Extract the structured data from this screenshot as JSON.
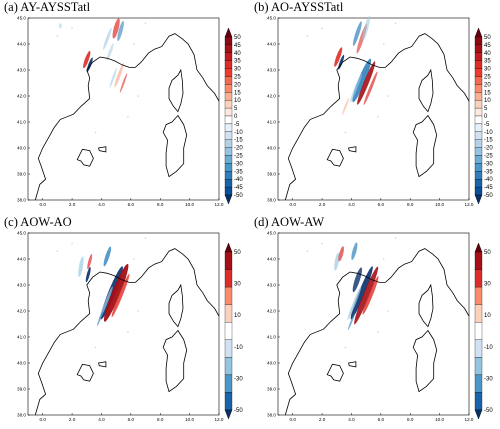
{
  "figure": {
    "panels": [
      {
        "title": "(a) AY-AYSSTatl",
        "colorbar_labels": [
          "50",
          "45",
          "40",
          "35",
          "30",
          "25",
          "20",
          "15",
          "10",
          "5",
          "0",
          "-5",
          "-10",
          "-15",
          "-20",
          "-25",
          "-30",
          "-35",
          "-40",
          "-45",
          "-50"
        ]
      },
      {
        "title": "(b) AO-AYSSTatl",
        "colorbar_labels": [
          "50",
          "45",
          "40",
          "35",
          "30",
          "25",
          "20",
          "15",
          "10",
          "5",
          "0",
          "-5",
          "-10",
          "-15",
          "-20",
          "-25",
          "-30",
          "-35",
          "-40",
          "-45",
          "-50"
        ]
      },
      {
        "title": "(c) AOW-AO",
        "colorbar_labels": [
          "50",
          "",
          "30",
          "",
          "10",
          "",
          "-10",
          "",
          "-30",
          "",
          "-50"
        ]
      },
      {
        "title": "(d) AOW-AW",
        "colorbar_labels": [
          "50",
          "",
          "30",
          "",
          "10",
          "",
          "-10",
          "",
          "-30",
          "",
          "-50"
        ]
      }
    ],
    "x_ticks": [
      "0.0",
      "2.0",
      "4.0",
      "6.0",
      "8.0",
      "10.0",
      "12.0"
    ],
    "y_ticks": [
      "45.0",
      "44.0",
      "43.0",
      "42.0",
      "41.0",
      "40.0",
      "39.0",
      "38.0"
    ],
    "colors": {
      "strong_red": "#a50f15",
      "red": "#de2d26",
      "light_red": "#fcae91",
      "strong_blue": "#08306b",
      "blue": "#3182bd",
      "light_blue": "#9ecae1",
      "coast": "#000000"
    },
    "colorbar_fine": [
      "#67000d",
      "#8b0a14",
      "#a50f15",
      "#c21a1e",
      "#de2d26",
      "#ef3b2c",
      "#f4684f",
      "#fb8a6a",
      "#fcae91",
      "#fdd0bc",
      "#fee7dc",
      "#ffffff",
      "#e6f0fa",
      "#cfe1f2",
      "#b3d2e9",
      "#93c4e1",
      "#6aaed6",
      "#4a98c9",
      "#2e7ebc",
      "#1764ab",
      "#08519c",
      "#08306b"
    ],
    "colorbar_coarse": [
      "#67000d",
      "#a50f15",
      "#de2d26",
      "#fb8a6a",
      "#fdd0bc",
      "#ffffff",
      "#cfe1f2",
      "#93c4e1",
      "#4a98c9",
      "#1764ab",
      "#08306b"
    ]
  }
}
